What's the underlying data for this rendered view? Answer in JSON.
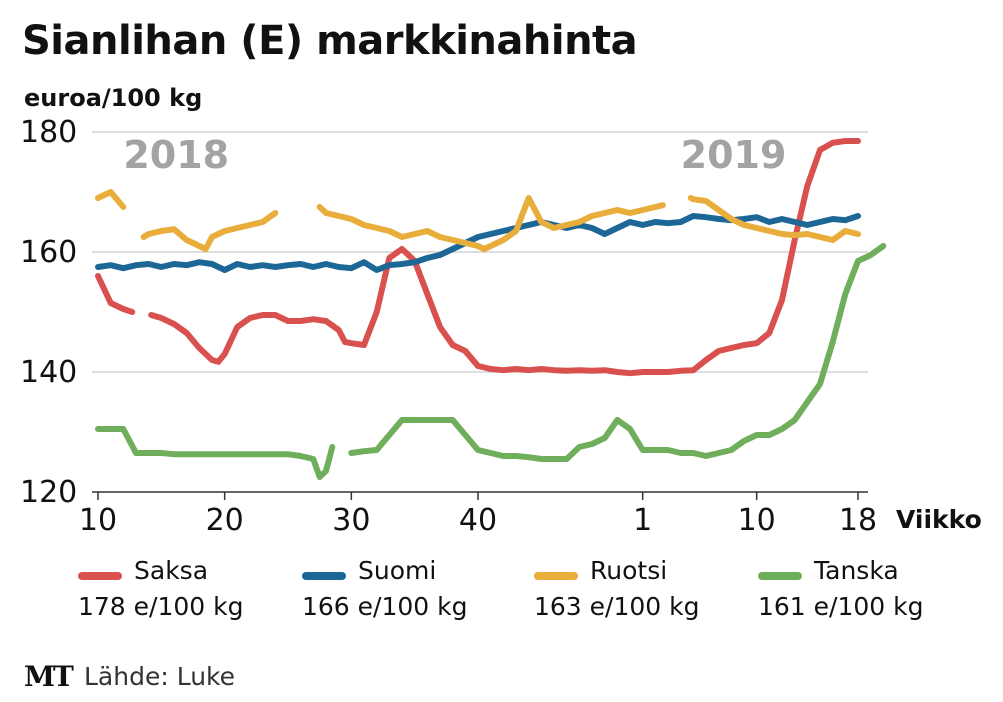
{
  "title": "Sianlihan (E) markkinahinta",
  "unit_label": "euroa/100 kg",
  "source": "Lähde: Luke",
  "logo": "MT",
  "chart_data": {
    "type": "line",
    "title": "Sianlihan (E) markkinahinta",
    "ylabel": "euroa/100 kg",
    "xlabel": "Viikko",
    "ylim": [
      120,
      180
    ],
    "yticks": [
      120,
      140,
      160,
      180
    ],
    "xrange": [
      0,
      60
    ],
    "xticks": [
      {
        "pos": 0,
        "label": "10"
      },
      {
        "pos": 10,
        "label": "20"
      },
      {
        "pos": 20,
        "label": "30"
      },
      {
        "pos": 30,
        "label": "40"
      },
      {
        "pos": 43,
        "label": "1"
      },
      {
        "pos": 52,
        "label": "10"
      },
      {
        "pos": 60,
        "label": "18"
      }
    ],
    "year_labels": [
      {
        "text": "2018",
        "pos": 2,
        "y": 176
      },
      {
        "text": "2019",
        "pos": 46,
        "y": 176
      }
    ],
    "series": [
      {
        "name": "Saksa",
        "color": "#d9514e",
        "end_value": "178 e/100 kg",
        "segments": [
          [
            [
              0,
              156
            ],
            [
              1,
              151.5
            ],
            [
              2,
              150.5
            ],
            [
              2.7,
              150
            ]
          ],
          [
            [
              4.2,
              149.5
            ],
            [
              5,
              149
            ],
            [
              6,
              148
            ],
            [
              7,
              146.5
            ],
            [
              8,
              144
            ],
            [
              9,
              142
            ],
            [
              9.5,
              141.7
            ],
            [
              10,
              143
            ],
            [
              11,
              147.5
            ],
            [
              12,
              149
            ],
            [
              13,
              149.5
            ],
            [
              14,
              149.5
            ],
            [
              15,
              148.5
            ],
            [
              16,
              148.5
            ],
            [
              17,
              148.8
            ],
            [
              18,
              148.5
            ],
            [
              19,
              147
            ],
            [
              19.5,
              145
            ],
            [
              20,
              144.8
            ],
            [
              21,
              144.5
            ],
            [
              22,
              150
            ],
            [
              23,
              159
            ],
            [
              24,
              160.5
            ],
            [
              25,
              158.5
            ],
            [
              26,
              153
            ],
            [
              27,
              147.5
            ],
            [
              28,
              144.5
            ],
            [
              29,
              143.5
            ],
            [
              30,
              141
            ],
            [
              31,
              140.5
            ],
            [
              32,
              140.3
            ],
            [
              33,
              140.5
            ],
            [
              34,
              140.3
            ],
            [
              35,
              140.5
            ],
            [
              36,
              140.3
            ],
            [
              37,
              140.2
            ],
            [
              38,
              140.3
            ],
            [
              39,
              140.2
            ],
            [
              40,
              140.3
            ],
            [
              41,
              140
            ],
            [
              42,
              139.8
            ],
            [
              43,
              140
            ],
            [
              44,
              140
            ],
            [
              45,
              140
            ],
            [
              46,
              140.2
            ],
            [
              47,
              140.3
            ],
            [
              48,
              142
            ],
            [
              49,
              143.5
            ],
            [
              50,
              144
            ],
            [
              51,
              144.5
            ],
            [
              52,
              144.8
            ],
            [
              53,
              146.5
            ],
            [
              54,
              152
            ],
            [
              55,
              162
            ],
            [
              56,
              171
            ],
            [
              57,
              177
            ],
            [
              58,
              178.2
            ],
            [
              59,
              178.5
            ],
            [
              60,
              178.5
            ]
          ]
        ]
      },
      {
        "name": "Suomi",
        "color": "#1d6797",
        "end_value": "166 e/100 kg",
        "segments": [
          [
            [
              0,
              157.5
            ],
            [
              1,
              157.8
            ],
            [
              2,
              157.3
            ],
            [
              3,
              157.8
            ],
            [
              4,
              158
            ],
            [
              5,
              157.5
            ],
            [
              6,
              158
            ],
            [
              7,
              157.8
            ],
            [
              8,
              158.3
            ],
            [
              9,
              158
            ],
            [
              10,
              157
            ],
            [
              11,
              158
            ],
            [
              12,
              157.5
            ],
            [
              13,
              157.8
            ],
            [
              14,
              157.5
            ],
            [
              15,
              157.8
            ],
            [
              16,
              158
            ],
            [
              17,
              157.5
            ],
            [
              18,
              158
            ],
            [
              19,
              157.5
            ],
            [
              20,
              157.3
            ],
            [
              21,
              158.3
            ],
            [
              22,
              157
            ],
            [
              23,
              157.8
            ],
            [
              24,
              158
            ],
            [
              25,
              158.3
            ],
            [
              26,
              159
            ],
            [
              27,
              159.5
            ],
            [
              28,
              160.5
            ],
            [
              29,
              161.5
            ],
            [
              30,
              162.5
            ],
            [
              31,
              163
            ],
            [
              32,
              163.5
            ],
            [
              33,
              164
            ],
            [
              34,
              164.5
            ],
            [
              35,
              165
            ],
            [
              36,
              164.5
            ],
            [
              37,
              164
            ],
            [
              38,
              164.5
            ],
            [
              39,
              164
            ],
            [
              40,
              163
            ],
            [
              41,
              164
            ],
            [
              42,
              165
            ],
            [
              43,
              164.5
            ],
            [
              44,
              165
            ],
            [
              45,
              164.8
            ],
            [
              46,
              165
            ],
            [
              47,
              166
            ],
            [
              48,
              165.8
            ],
            [
              49,
              165.5
            ],
            [
              50,
              165.3
            ],
            [
              51,
              165.5
            ],
            [
              52,
              165.8
            ],
            [
              53,
              165
            ],
            [
              54,
              165.5
            ],
            [
              55,
              165
            ],
            [
              56,
              164.5
            ],
            [
              57,
              165
            ],
            [
              58,
              165.5
            ],
            [
              59,
              165.3
            ],
            [
              60,
              166
            ]
          ]
        ]
      },
      {
        "name": "Ruotsi",
        "color": "#e8ad3b",
        "end_value": "163 e/100 kg",
        "segments": [
          [
            [
              0,
              169
            ],
            [
              1,
              170
            ],
            [
              2,
              167.5
            ]
          ],
          [
            [
              3.6,
              162.5
            ],
            [
              4,
              163
            ],
            [
              5,
              163.5
            ],
            [
              6,
              163.8
            ],
            [
              7,
              162
            ],
            [
              8,
              161
            ],
            [
              8.5,
              160.5
            ],
            [
              9,
              162.5
            ],
            [
              10,
              163.5
            ],
            [
              11,
              164
            ],
            [
              12,
              164.5
            ],
            [
              13,
              165
            ],
            [
              14,
              166.5
            ]
          ],
          [
            [
              17.5,
              167.5
            ],
            [
              18,
              166.5
            ],
            [
              19,
              166
            ],
            [
              20,
              165.5
            ],
            [
              21,
              164.5
            ],
            [
              22,
              164
            ],
            [
              23,
              163.5
            ],
            [
              24,
              162.5
            ],
            [
              25,
              163
            ],
            [
              26,
              163.5
            ],
            [
              27,
              162.5
            ],
            [
              28,
              162
            ],
            [
              29,
              161.5
            ],
            [
              30,
              161
            ],
            [
              30.5,
              160.5
            ],
            [
              31,
              161
            ],
            [
              32,
              162
            ],
            [
              33,
              163.5
            ],
            [
              34,
              169
            ],
            [
              35,
              165
            ],
            [
              36,
              164
            ],
            [
              37,
              164.5
            ],
            [
              38,
              165
            ],
            [
              39,
              166
            ],
            [
              40,
              166.5
            ],
            [
              41,
              167
            ],
            [
              42,
              166.5
            ],
            [
              43,
              167
            ],
            [
              44,
              167.5
            ],
            [
              44.6,
              167.8
            ]
          ],
          [
            [
              46.8,
              169
            ],
            [
              47,
              168.8
            ],
            [
              48,
              168.5
            ],
            [
              49,
              167
            ],
            [
              50,
              165.5
            ],
            [
              51,
              164.5
            ],
            [
              52,
              164
            ],
            [
              53,
              163.5
            ],
            [
              54,
              163
            ],
            [
              55,
              162.8
            ],
            [
              56,
              163
            ],
            [
              57,
              162.5
            ],
            [
              58,
              162
            ],
            [
              59,
              163.5
            ],
            [
              60,
              163
            ]
          ]
        ]
      },
      {
        "name": "Tanska",
        "color": "#6fae5a",
        "end_value": "161 e/100 kg",
        "segments": [
          [
            [
              0,
              130.5
            ],
            [
              1,
              130.5
            ],
            [
              2,
              130.5
            ],
            [
              3,
              126.5
            ],
            [
              4,
              126.5
            ],
            [
              5,
              126.5
            ],
            [
              6,
              126.3
            ],
            [
              7,
              126.3
            ],
            [
              8,
              126.3
            ],
            [
              9,
              126.3
            ],
            [
              10,
              126.3
            ],
            [
              11,
              126.3
            ],
            [
              12,
              126.3
            ],
            [
              13,
              126.3
            ],
            [
              14,
              126.3
            ],
            [
              15,
              126.3
            ],
            [
              16,
              126
            ],
            [
              17,
              125.5
            ],
            [
              17.5,
              122.5
            ],
            [
              18,
              123.5
            ],
            [
              18.5,
              127.5
            ]
          ],
          [
            [
              20,
              126.5
            ],
            [
              21,
              126.8
            ],
            [
              22,
              127
            ],
            [
              23,
              129.5
            ],
            [
              24,
              132
            ],
            [
              25,
              132
            ],
            [
              26,
              132
            ],
            [
              27,
              132
            ],
            [
              28,
              132
            ],
            [
              29,
              129.5
            ],
            [
              30,
              127
            ],
            [
              31,
              126.5
            ],
            [
              32,
              126
            ],
            [
              33,
              126
            ],
            [
              34,
              125.8
            ],
            [
              35,
              125.5
            ],
            [
              36,
              125.5
            ],
            [
              37,
              125.5
            ],
            [
              38,
              127.5
            ],
            [
              39,
              128
            ],
            [
              40,
              129
            ],
            [
              41,
              132
            ],
            [
              42,
              130.5
            ],
            [
              43,
              127
            ],
            [
              44,
              127
            ],
            [
              45,
              127
            ],
            [
              46,
              126.5
            ],
            [
              47,
              126.5
            ],
            [
              48,
              126
            ],
            [
              49,
              126.5
            ],
            [
              50,
              127
            ],
            [
              51,
              128.5
            ],
            [
              52,
              129.5
            ],
            [
              53,
              129.5
            ],
            [
              54,
              130.5
            ],
            [
              55,
              132
            ],
            [
              56,
              135
            ],
            [
              57,
              138
            ],
            [
              58,
              145
            ],
            [
              59,
              153
            ],
            [
              60,
              158.5
            ],
            [
              61,
              159.5
            ],
            [
              62,
              161
            ]
          ]
        ]
      }
    ]
  }
}
